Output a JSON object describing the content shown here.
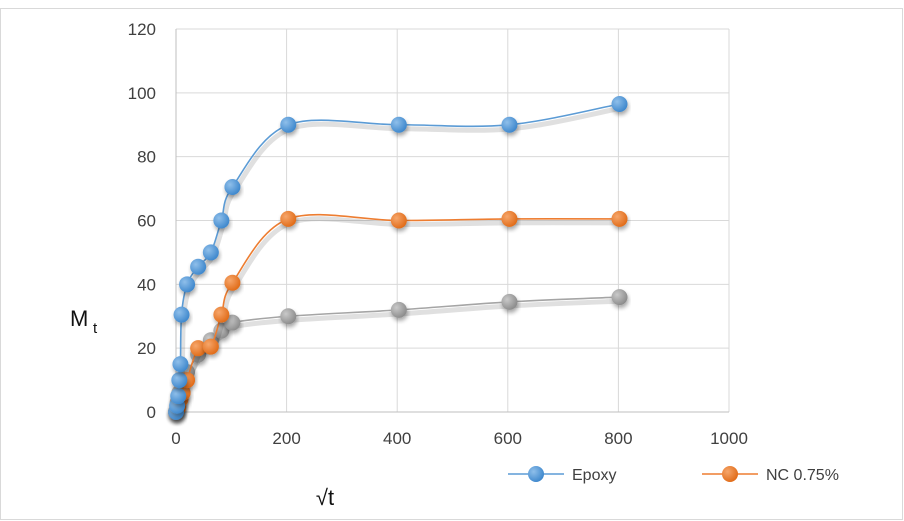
{
  "chart_data": {
    "type": "scatter",
    "title": "",
    "xlabel": "√t",
    "ylabel_main": "M",
    "ylabel_sub": "t",
    "xlim": [
      0,
      1000
    ],
    "ylim": [
      0,
      120
    ],
    "x_ticks": [
      0,
      200,
      400,
      600,
      800,
      1000
    ],
    "y_ticks": [
      0,
      20,
      40,
      60,
      80,
      100,
      120
    ],
    "grid": true,
    "smooth": true,
    "legend_position": "bottom-right",
    "series": [
      {
        "name": "Epoxy",
        "color": "#5b9bd5",
        "line_color": "#5b9bd5",
        "in_legend": true,
        "points": [
          [
            0,
            0
          ],
          [
            2,
            2
          ],
          [
            4,
            5
          ],
          [
            6,
            10
          ],
          [
            8,
            15
          ],
          [
            10,
            30.5
          ],
          [
            20,
            40
          ],
          [
            40,
            45.5
          ],
          [
            63,
            50
          ],
          [
            82,
            60
          ],
          [
            102,
            70.5
          ],
          [
            203,
            90
          ],
          [
            403,
            90
          ],
          [
            603,
            90
          ],
          [
            802,
            96.5
          ]
        ]
      },
      {
        "name": "NC 0.75%",
        "color": "#ed7d31",
        "line_color": "#ed7d31",
        "in_legend": true,
        "points": [
          [
            0,
            0
          ],
          [
            4,
            1.5
          ],
          [
            8,
            4
          ],
          [
            12,
            6
          ],
          [
            20,
            10
          ],
          [
            40,
            20
          ],
          [
            63,
            20.5
          ],
          [
            82,
            30.5
          ],
          [
            102,
            40.5
          ],
          [
            203,
            60.5
          ],
          [
            403,
            60
          ],
          [
            603,
            60.5
          ],
          [
            802,
            60.5
          ]
        ]
      },
      {
        "color": "#a5a5a5",
        "line_color": "#a5a5a5",
        "in_legend": false,
        "points": [
          [
            0,
            0
          ],
          [
            3,
            3
          ],
          [
            6,
            6
          ],
          [
            10,
            9
          ],
          [
            20,
            12.5
          ],
          [
            40,
            18
          ],
          [
            63,
            22.5
          ],
          [
            82,
            25.5
          ],
          [
            102,
            28
          ],
          [
            203,
            30
          ],
          [
            403,
            32
          ],
          [
            603,
            34.5
          ],
          [
            802,
            36
          ]
        ]
      }
    ]
  }
}
